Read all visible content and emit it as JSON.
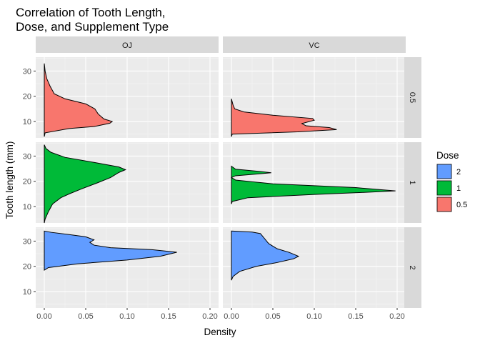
{
  "chart_data": {
    "type": "area",
    "title": "Correlation of Tooth Length,\nDose, and Supplement Type",
    "xlabel": "Density",
    "ylabel": "Tooth length (mm)",
    "xlim": [
      0,
      0.2
    ],
    "ylim": [
      3.5,
      35.5
    ],
    "x_ticks": [
      0.0,
      0.05,
      0.1,
      0.15,
      0.2
    ],
    "x_tick_labels": [
      "0.00",
      "0.05",
      "0.10",
      "0.15",
      "0.20"
    ],
    "y_ticks": [
      10,
      20,
      30
    ],
    "y_tick_labels": [
      "10",
      "20",
      "30"
    ],
    "grid": true,
    "col_facets": [
      "OJ",
      "VC"
    ],
    "row_facets": [
      "0.5",
      "1",
      "2"
    ],
    "legend": {
      "title": "Dose",
      "position": "right",
      "items": [
        {
          "label": "2",
          "color": "#619CFF"
        },
        {
          "label": "1",
          "color": "#00BA38"
        },
        {
          "label": "0.5",
          "color": "#F8766D"
        }
      ]
    },
    "panels": [
      {
        "supp": "OJ",
        "dose": "0.5",
        "color": "#F8766D",
        "points": [
          [
            0.0,
            4.0
          ],
          [
            0.001,
            5.5
          ],
          [
            0.03,
            7.2
          ],
          [
            0.06,
            8.0
          ],
          [
            0.079,
            9.3
          ],
          [
            0.082,
            10.0
          ],
          [
            0.072,
            11.0
          ],
          [
            0.065,
            13.0
          ],
          [
            0.061,
            15.0
          ],
          [
            0.05,
            17.0
          ],
          [
            0.025,
            19.0
          ],
          [
            0.012,
            21.0
          ],
          [
            0.007,
            24.0
          ],
          [
            0.003,
            27.0
          ],
          [
            0.001,
            30.0
          ],
          [
            0.0,
            33.0
          ]
        ]
      },
      {
        "supp": "VC",
        "dose": "0.5",
        "color": "#F8766D",
        "points": [
          [
            0.0,
            4.0
          ],
          [
            0.001,
            5.0
          ],
          [
            0.08,
            5.9
          ],
          [
            0.127,
            6.8
          ],
          [
            0.118,
            7.6
          ],
          [
            0.09,
            8.3
          ],
          [
            0.085,
            9.2
          ],
          [
            0.1,
            10.5
          ],
          [
            0.098,
            11.2
          ],
          [
            0.05,
            12.5
          ],
          [
            0.015,
            13.8
          ],
          [
            0.004,
            15.0
          ],
          [
            0.002,
            16.5
          ],
          [
            0.0,
            19.0
          ]
        ]
      },
      {
        "supp": "OJ",
        "dose": "1",
        "color": "#00BA38",
        "points": [
          [
            0.0,
            3.5
          ],
          [
            0.001,
            5.0
          ],
          [
            0.005,
            8.0
          ],
          [
            0.01,
            11.0
          ],
          [
            0.02,
            13.5
          ],
          [
            0.03,
            15.0
          ],
          [
            0.045,
            17.0
          ],
          [
            0.065,
            19.5
          ],
          [
            0.08,
            21.5
          ],
          [
            0.09,
            23.5
          ],
          [
            0.098,
            24.6
          ],
          [
            0.09,
            25.7
          ],
          [
            0.06,
            27.5
          ],
          [
            0.025,
            29.5
          ],
          [
            0.008,
            31.5
          ],
          [
            0.002,
            33.0
          ],
          [
            0.0,
            34.5
          ]
        ]
      },
      {
        "supp": "VC",
        "dose": "1",
        "color": "#00BA38",
        "points": [
          [
            0.0,
            11.0
          ],
          [
            0.001,
            12.0
          ],
          [
            0.02,
            13.5
          ],
          [
            0.1,
            14.8
          ],
          [
            0.16,
            15.6
          ],
          [
            0.198,
            16.2
          ],
          [
            0.15,
            17.5
          ],
          [
            0.05,
            19.0
          ],
          [
            0.005,
            20.5
          ],
          [
            0.0,
            21.5
          ],
          [
            0.005,
            22.2
          ],
          [
            0.035,
            23.0
          ],
          [
            0.048,
            23.4
          ],
          [
            0.035,
            23.9
          ],
          [
            0.005,
            24.8
          ],
          [
            0.0,
            26.0
          ]
        ]
      },
      {
        "supp": "OJ",
        "dose": "2",
        "color": "#619CFF",
        "points": [
          [
            0.0,
            18.5
          ],
          [
            0.005,
            19.5
          ],
          [
            0.04,
            21.0
          ],
          [
            0.1,
            22.5
          ],
          [
            0.14,
            24.0
          ],
          [
            0.16,
            25.6
          ],
          [
            0.13,
            26.6
          ],
          [
            0.08,
            27.4
          ],
          [
            0.06,
            28.4
          ],
          [
            0.055,
            29.5
          ],
          [
            0.06,
            30.5
          ],
          [
            0.05,
            31.7
          ],
          [
            0.03,
            32.6
          ],
          [
            0.008,
            33.5
          ],
          [
            0.0,
            34.0
          ]
        ]
      },
      {
        "supp": "VC",
        "dose": "2",
        "color": "#619CFF",
        "points": [
          [
            0.0,
            14.5
          ],
          [
            0.002,
            16.0
          ],
          [
            0.01,
            18.0
          ],
          [
            0.03,
            20.0
          ],
          [
            0.055,
            21.5
          ],
          [
            0.075,
            23.0
          ],
          [
            0.081,
            24.0
          ],
          [
            0.07,
            25.5
          ],
          [
            0.055,
            27.0
          ],
          [
            0.045,
            29.0
          ],
          [
            0.04,
            31.0
          ],
          [
            0.035,
            33.0
          ],
          [
            0.025,
            33.6
          ],
          [
            0.0,
            34.0
          ]
        ]
      }
    ]
  }
}
